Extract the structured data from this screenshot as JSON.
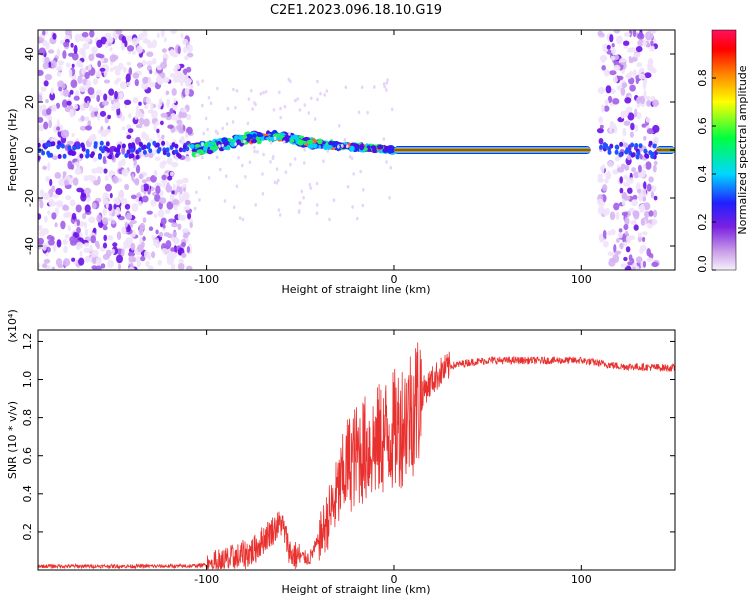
{
  "title": "C2E1.2023.096.18.10.G19",
  "chart_data": [
    {
      "type": "heatmap",
      "xlabel": "Height of straight line (km)",
      "ylabel": "Frequency (Hz)",
      "xlim": [
        -190,
        150
      ],
      "ylim": [
        -50,
        50
      ],
      "x_ticks": [
        -100,
        0,
        100
      ],
      "y_ticks": [
        -40,
        -20,
        0,
        20,
        40
      ],
      "colorbar": {
        "label": "Normalized spectral amplitude",
        "range": [
          0,
          1
        ],
        "ticks": [
          "0.0",
          "0.2",
          "0.4",
          "0.6",
          "0.8"
        ],
        "colors": [
          "#f7f0fb",
          "#8a2be2",
          "#2020ff",
          "#00e5ff",
          "#00ff40",
          "#ffff00",
          "#ff8000",
          "#ff0000",
          "#ff1060"
        ]
      },
      "regions": [
        {
          "x": [
            -190,
            -108
          ],
          "kind": "noise",
          "freq_spread": [
            -50,
            50
          ]
        },
        {
          "x": [
            -108,
            0
          ],
          "kind": "signal",
          "freq_center": [
            0,
            2,
            5,
            6,
            3,
            2,
            1,
            0
          ]
        },
        {
          "x": [
            0,
            105
          ],
          "kind": "tone",
          "freq": 0
        },
        {
          "x": [
            110,
            140
          ],
          "kind": "noise",
          "freq_spread": [
            -50,
            50
          ]
        },
        {
          "x": [
            140,
            150
          ],
          "kind": "tone",
          "freq": 0
        }
      ]
    },
    {
      "type": "line",
      "xlabel": "Height of straight line (km)",
      "ylabel": "SNR (10 * v/v)",
      "y_scale_label": "(x10⁴)",
      "xlim": [
        -190,
        150
      ],
      "ylim": [
        0,
        1.26
      ],
      "x_ticks": [
        -100,
        0,
        100
      ],
      "y_ticks": [
        "0.2",
        "0.4",
        "0.6",
        "0.8",
        "1.0",
        "1.2"
      ],
      "color": "#e8302e",
      "x": [
        -190,
        -150,
        -110,
        -95,
        -85,
        -75,
        -68,
        -60,
        -55,
        -45,
        -38,
        -30,
        -25,
        -18,
        -10,
        -5,
        0,
        5,
        10,
        15,
        20,
        25,
        30,
        40,
        50,
        60,
        80,
        100,
        120,
        150
      ],
      "y": [
        0.02,
        0.02,
        0.02,
        0.03,
        0.06,
        0.1,
        0.18,
        0.25,
        0.08,
        0.06,
        0.2,
        0.4,
        0.55,
        0.62,
        0.66,
        0.7,
        0.73,
        0.78,
        0.85,
        0.93,
        0.99,
        1.04,
        1.07,
        1.09,
        1.1,
        1.1,
        1.1,
        1.1,
        1.07,
        1.06
      ]
    }
  ]
}
